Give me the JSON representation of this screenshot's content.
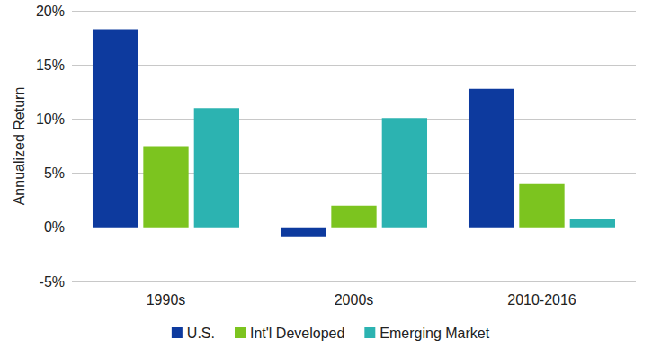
{
  "chart_data": {
    "type": "bar",
    "y_label": "Annualized Return",
    "categories": [
      "1990s",
      "2000s",
      "2010-2016"
    ],
    "series": [
      {
        "name": "U.S.",
        "color": "#0d3a9e",
        "values": [
          18.3,
          -0.9,
          12.8
        ]
      },
      {
        "name": "Int'l Developed",
        "color": "#7cc41f",
        "values": [
          7.5,
          2.0,
          4.0
        ]
      },
      {
        "name": "Emerging Market",
        "color": "#2cb3b1",
        "values": [
          11.0,
          10.1,
          0.8
        ]
      }
    ],
    "ylim": [
      -5,
      20
    ],
    "yticks": [
      {
        "value": -5,
        "label": "-5%"
      },
      {
        "value": 0,
        "label": "0%"
      },
      {
        "value": 5,
        "label": "5%"
      },
      {
        "value": 10,
        "label": "10%"
      },
      {
        "value": 15,
        "label": "15%"
      },
      {
        "value": 20,
        "label": "20%"
      }
    ],
    "grid": true,
    "legend": "bottom"
  }
}
